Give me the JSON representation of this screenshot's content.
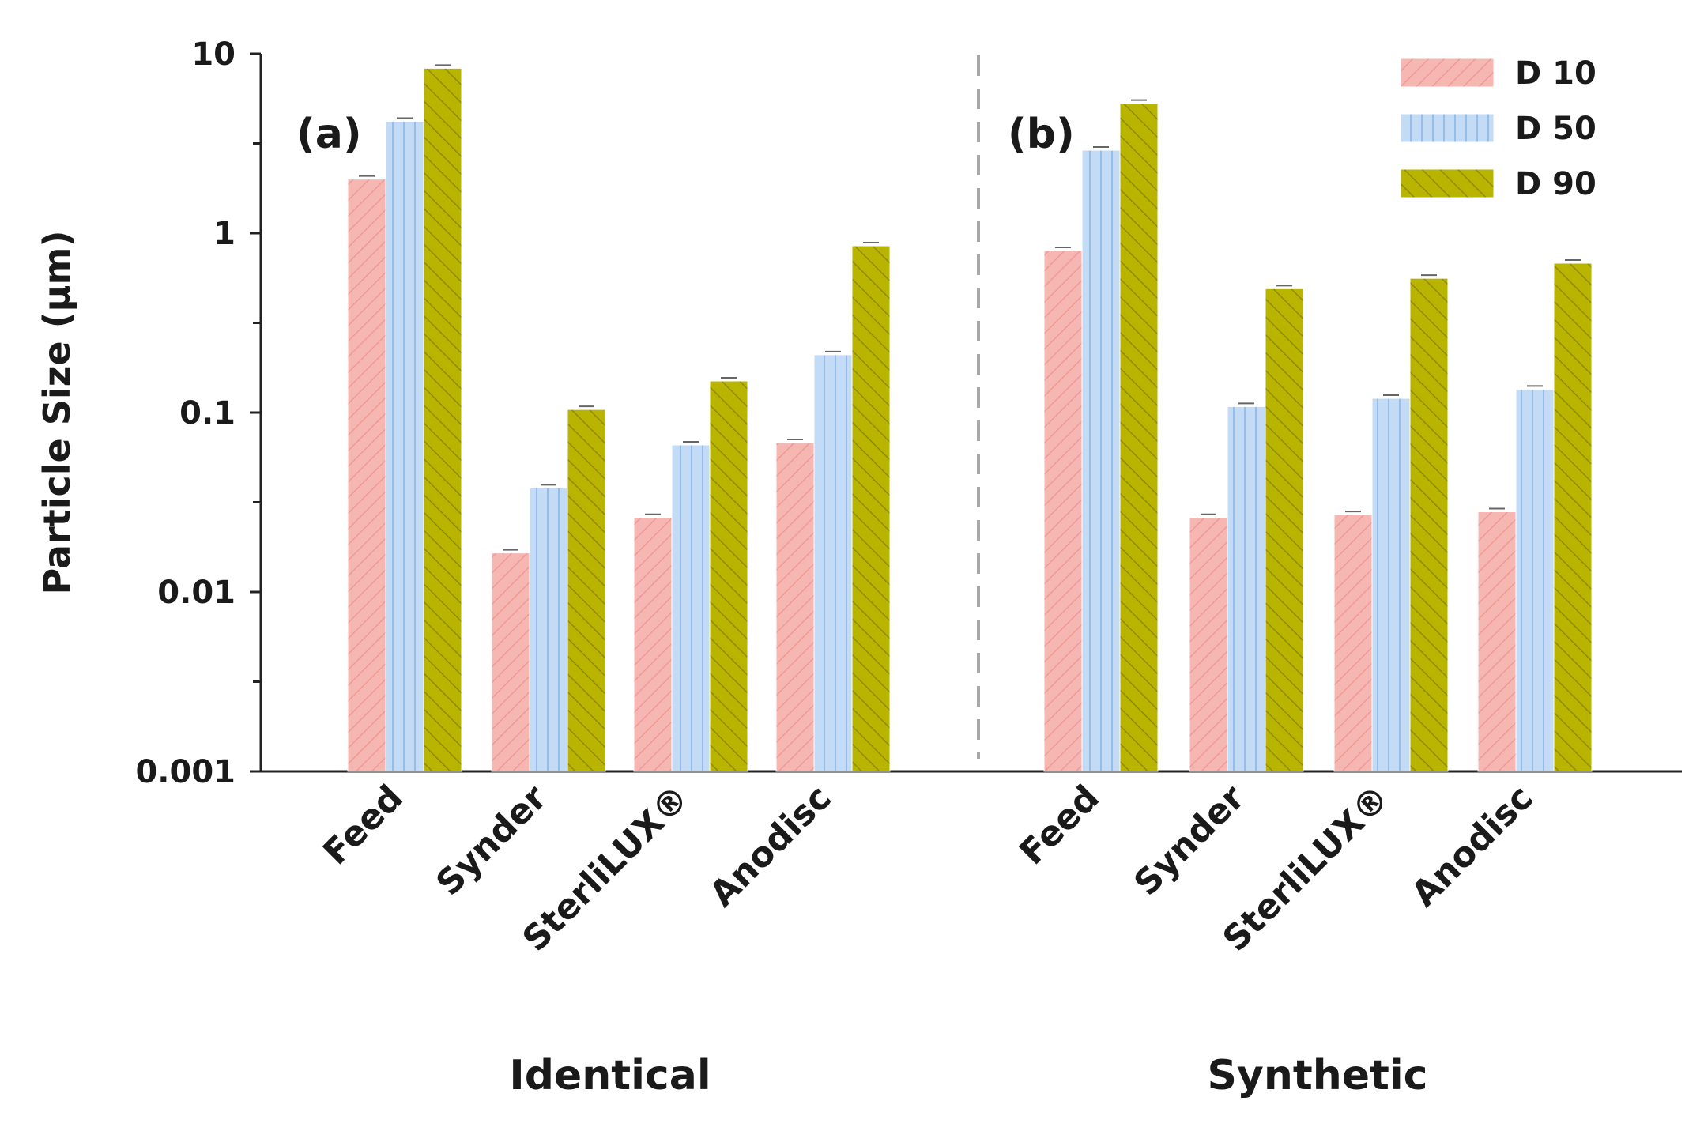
{
  "chart_data": {
    "type": "bar",
    "ylabel": "Particle Size (μm)",
    "yscale": "log",
    "ylim": [
      0.001,
      10
    ],
    "yticks": [
      "0.001",
      "0.01",
      "0.1",
      "1",
      "10"
    ],
    "series_names": [
      "D 10",
      "D 50",
      "D 90"
    ],
    "series_colors": [
      "#f6b7b3",
      "#bcd6f5",
      "#b8b400"
    ],
    "panels": [
      {
        "label": "(a)",
        "group_label": "Identical",
        "categories": [
          "Feed",
          "Synder",
          "SterliLUX®",
          "Anodisc"
        ],
        "series": [
          {
            "name": "D 10",
            "values": [
              2.0,
              0.0165,
              0.026,
              0.068
            ]
          },
          {
            "name": "D 50",
            "values": [
              4.2,
              0.038,
              0.066,
              0.21
            ]
          },
          {
            "name": "D 90",
            "values": [
              8.3,
              0.104,
              0.15,
              0.85
            ]
          }
        ]
      },
      {
        "label": "(b)",
        "group_label": "Synthetic",
        "categories": [
          "Feed",
          "Synder",
          "SterliLUX®",
          "Anodisc"
        ],
        "series": [
          {
            "name": "D 10",
            "values": [
              0.8,
              0.026,
              0.027,
              0.028
            ]
          },
          {
            "name": "D 50",
            "values": [
              2.9,
              0.108,
              0.12,
              0.135
            ]
          },
          {
            "name": "D 90",
            "values": [
              5.3,
              0.49,
              0.56,
              0.68
            ]
          }
        ]
      }
    ]
  }
}
